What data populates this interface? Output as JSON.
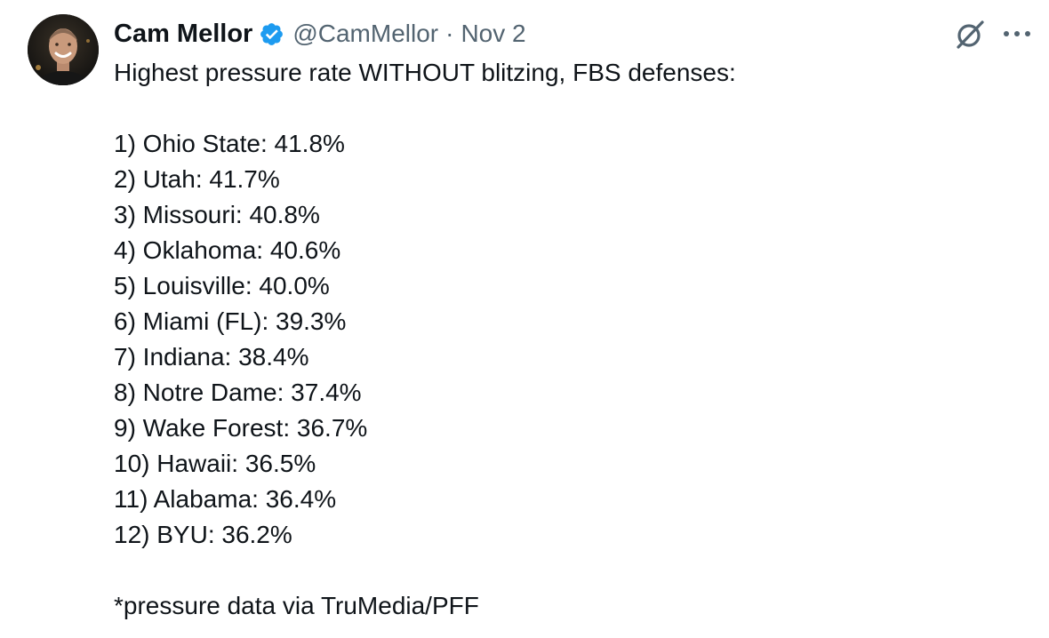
{
  "author": {
    "display_name": "Cam Mellor",
    "handle": "@CamMellor",
    "separator": "·",
    "date": "Nov 2",
    "verified_icon": "verified-badge-icon",
    "verified_color": "#1d9bf0"
  },
  "actions": {
    "grok_icon": "grok-icon",
    "more_icon": "more-options-icon"
  },
  "tweet": {
    "headline": "Highest pressure rate WITHOUT blitzing, FBS defenses:",
    "rankings": [
      "1) Ohio State: 41.8%",
      "2) Utah: 41.7%",
      "3) Missouri: 40.8%",
      "4) Oklahoma: 40.6%",
      "5) Louisville: 40.0%",
      "6) Miami (FL): 39.3%",
      "7) Indiana: 38.4%",
      "8) Notre Dame: 37.4%",
      "9) Wake Forest: 36.7%",
      "10) Hawaii: 36.5%",
      "11) Alabama: 36.4%",
      "12) BYU: 36.2%"
    ],
    "footnote": "*pressure data via TruMedia/PFF"
  }
}
